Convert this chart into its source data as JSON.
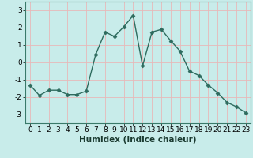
{
  "x": [
    0,
    1,
    2,
    3,
    4,
    5,
    6,
    7,
    8,
    9,
    10,
    11,
    12,
    13,
    14,
    15,
    16,
    17,
    18,
    19,
    20,
    21,
    22,
    23
  ],
  "y": [
    -1.3,
    -1.9,
    -1.6,
    -1.6,
    -1.85,
    -1.85,
    -1.65,
    0.45,
    1.75,
    1.5,
    2.05,
    2.7,
    -0.2,
    1.75,
    1.9,
    1.25,
    0.65,
    -0.5,
    -0.75,
    -1.3,
    -1.75,
    -2.3,
    -2.55,
    -2.9
  ],
  "line_color": "#2e6b5e",
  "marker": "D",
  "marker_size": 2.5,
  "background_color": "#c8ecea",
  "grid_color": "#e8b8b8",
  "xlabel": "Humidex (Indice chaleur)",
  "ylim": [
    -3.5,
    3.5
  ],
  "xlim": [
    -0.5,
    23.5
  ],
  "yticks": [
    -3,
    -2,
    -1,
    0,
    1,
    2,
    3
  ],
  "xticks": [
    0,
    1,
    2,
    3,
    4,
    5,
    6,
    7,
    8,
    9,
    10,
    11,
    12,
    13,
    14,
    15,
    16,
    17,
    18,
    19,
    20,
    21,
    22,
    23
  ],
  "xlabel_fontsize": 7.5,
  "tick_fontsize": 6.5,
  "line_width": 1.0,
  "spine_color": "#3a7a6a"
}
